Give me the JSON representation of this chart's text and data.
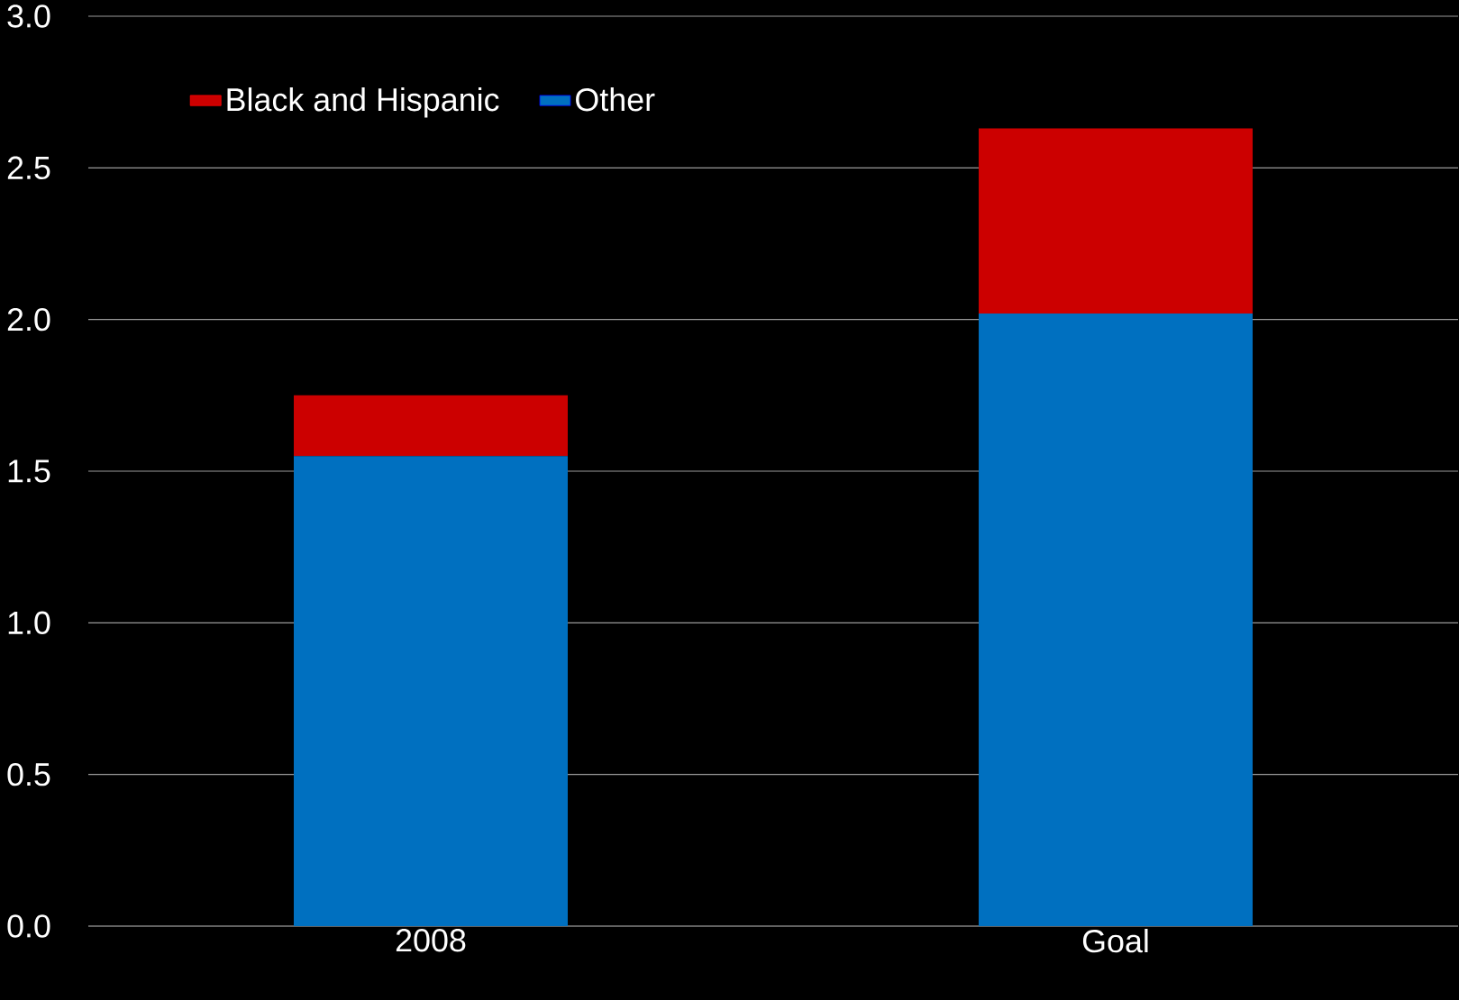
{
  "chart_data": {
    "type": "bar",
    "stacked": true,
    "categories": [
      "2008",
      "Goal"
    ],
    "series": [
      {
        "name": "Other",
        "color": "#0070c0",
        "values": [
          1.55,
          2.02
        ]
      },
      {
        "name": "Black and Hispanic",
        "color": "#cc0000",
        "values": [
          0.2,
          0.61
        ]
      }
    ],
    "ylim": [
      0,
      3
    ],
    "yticks": [
      {
        "value": 0,
        "label": "0.0"
      },
      {
        "value": 0.5,
        "label": "0.5"
      },
      {
        "value": 1,
        "label": "1.0"
      },
      {
        "value": 1.5,
        "label": "1.5"
      },
      {
        "value": 2,
        "label": "2.0"
      },
      {
        "value": 2.5,
        "label": "2.5"
      },
      {
        "value": 3,
        "label": "3.0"
      }
    ],
    "grid": "y",
    "legend": "top left"
  }
}
